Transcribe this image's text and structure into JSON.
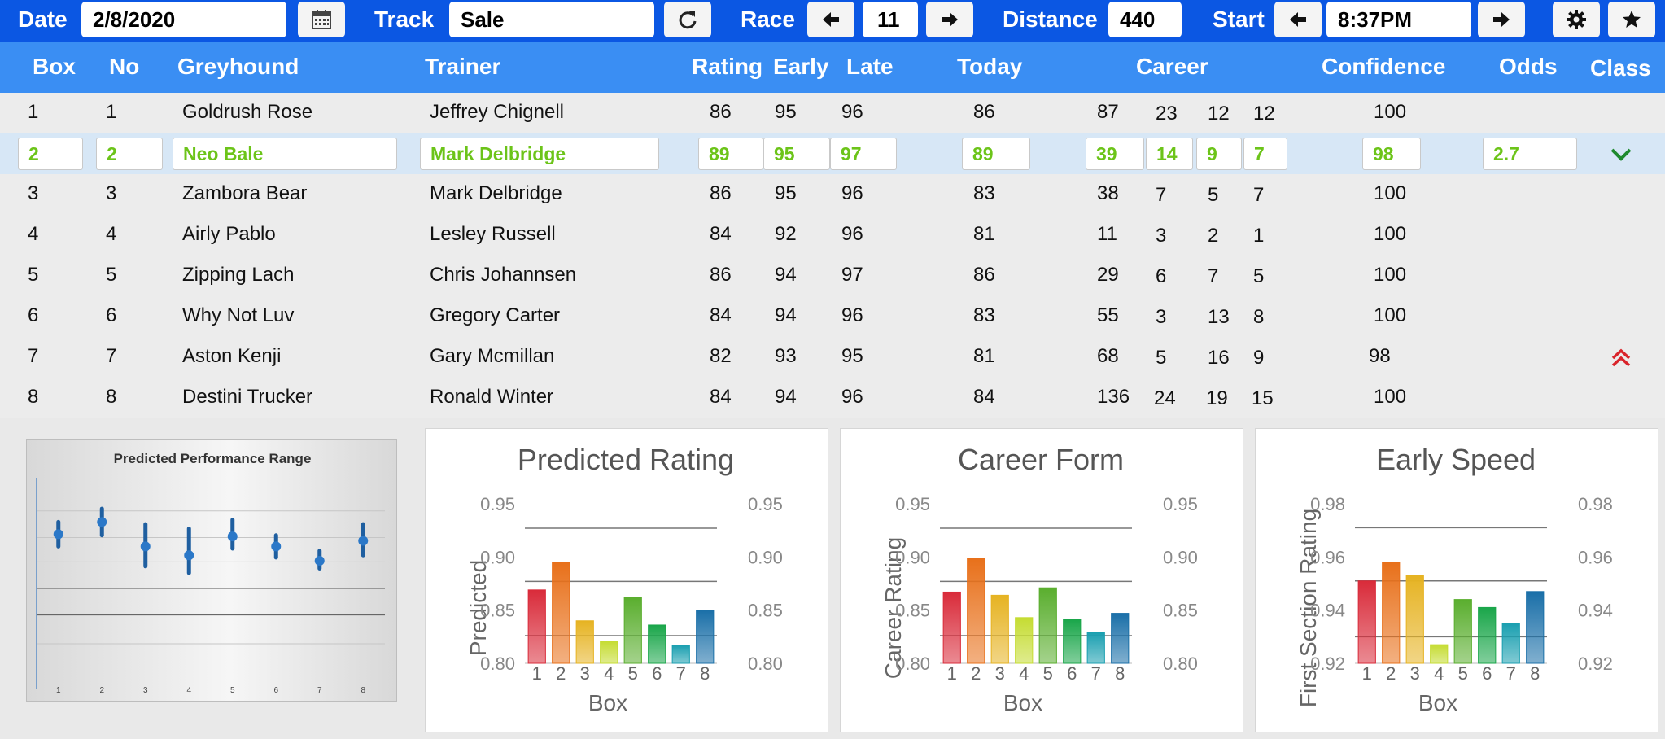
{
  "toolbar": {
    "date_label": "Date",
    "date_value": "2/8/2020",
    "track_label": "Track",
    "track_value": "Sale",
    "race_label": "Race",
    "race_value": "11",
    "distance_label": "Distance",
    "distance_value": "440",
    "start_label": "Start",
    "start_value": "8:37PM",
    "icons": [
      "calendar-icon",
      "refresh-icon",
      "arrow-left-icon",
      "arrow-right-icon",
      "gear-icon",
      "star-icon"
    ]
  },
  "table": {
    "headers": [
      "Box",
      "No",
      "Greyhound",
      "Trainer",
      "Rating",
      "Early",
      "Late",
      "Today",
      "Career",
      "Confidence",
      "Odds",
      "Class"
    ],
    "rows": [
      {
        "box": "1",
        "no": "1",
        "greyhound": "Goldrush Rose",
        "trainer": "Jeffrey Chignell",
        "rating": "86",
        "early": "95",
        "late": "96",
        "today": "86",
        "c1": "87",
        "c2": "23",
        "c3": "12",
        "c4": "12",
        "confidence": "100",
        "odds": "",
        "cls": ""
      },
      {
        "box": "2",
        "no": "2",
        "greyhound": "Neo Bale",
        "trainer": "Mark Delbridge",
        "rating": "89",
        "early": "95",
        "late": "97",
        "today": "89",
        "c1": "39",
        "c2": "14",
        "c3": "9",
        "c4": "7",
        "confidence": "98",
        "odds": "2.7",
        "cls": "chevron-down"
      },
      {
        "box": "3",
        "no": "3",
        "greyhound": "Zambora Bear",
        "trainer": "Mark Delbridge",
        "rating": "86",
        "early": "95",
        "late": "96",
        "today": "83",
        "c1": "38",
        "c2": "7",
        "c3": "5",
        "c4": "7",
        "confidence": "100",
        "odds": "",
        "cls": ""
      },
      {
        "box": "4",
        "no": "4",
        "greyhound": "Airly Pablo",
        "trainer": "Lesley Russell",
        "rating": "84",
        "early": "92",
        "late": "96",
        "today": "81",
        "c1": "11",
        "c2": "3",
        "c3": "2",
        "c4": "1",
        "confidence": "100",
        "odds": "",
        "cls": ""
      },
      {
        "box": "5",
        "no": "5",
        "greyhound": "Zipping Lach",
        "trainer": "Chris Johannsen",
        "rating": "86",
        "early": "94",
        "late": "97",
        "today": "86",
        "c1": "29",
        "c2": "6",
        "c3": "7",
        "c4": "5",
        "confidence": "100",
        "odds": "",
        "cls": ""
      },
      {
        "box": "6",
        "no": "6",
        "greyhound": "Why Not Luv",
        "trainer": "Gregory Carter",
        "rating": "84",
        "early": "94",
        "late": "96",
        "today": "83",
        "c1": "55",
        "c2": "3",
        "c3": "13",
        "c4": "8",
        "confidence": "100",
        "odds": "",
        "cls": ""
      },
      {
        "box": "7",
        "no": "7",
        "greyhound": "Aston Kenji",
        "trainer": "Gary Mcmillan",
        "rating": "82",
        "early": "93",
        "late": "95",
        "today": "81",
        "c1": "68",
        "c2": "5",
        "c3": "16",
        "c4": "9",
        "confidence": "98",
        "odds": "",
        "cls": "double-chevron-up"
      },
      {
        "box": "8",
        "no": "8",
        "greyhound": "Destini Trucker",
        "trainer": "Ronald Winter",
        "rating": "84",
        "early": "94",
        "late": "96",
        "today": "84",
        "c1": "136",
        "c2": "24",
        "c3": "19",
        "c4": "15",
        "confidence": "100",
        "odds": "",
        "cls": ""
      }
    ],
    "selected_row": 1
  },
  "colors": {
    "toolbar_bg": "#0b57e3",
    "header_bg": "#3a8ef3",
    "selected_row_bg": "#d7e7f6",
    "selected_text": "#6cc419",
    "down_chevron": "#1f8a2e",
    "up_chevron": "#d9242b",
    "bar_colors": [
      "#d92b3a",
      "#e8701a",
      "#e6b322",
      "#c5dc32",
      "#5aae2e",
      "#1aa64a",
      "#1a9fb0",
      "#1a6fa8"
    ]
  },
  "chart_data": [
    {
      "type": "scatter",
      "title": "Predicted Performance Range",
      "categories": [
        "1",
        "2",
        "3",
        "4",
        "5",
        "6",
        "7",
        "8"
      ],
      "values": [
        0.745,
        0.8,
        0.69,
        0.65,
        0.735,
        0.69,
        0.625,
        0.715
      ],
      "low": [
        0.69,
        0.74,
        0.6,
        0.57,
        0.68,
        0.64,
        0.59,
        0.65
      ],
      "high": [
        0.8,
        0.86,
        0.79,
        0.77,
        0.81,
        0.74,
        0.67,
        0.79
      ],
      "ylim": [
        0.0,
        1.0
      ],
      "grid": true
    },
    {
      "type": "bar",
      "title": "Predicted Rating",
      "categories": [
        "1",
        "2",
        "3",
        "4",
        "5",
        "6",
        "7",
        "8"
      ],
      "values": [
        0.869,
        0.895,
        0.84,
        0.821,
        0.862,
        0.836,
        0.817,
        0.85
      ],
      "xlabel": "Box",
      "ylabel": "Predicted",
      "ylim": [
        0.8,
        0.95
      ],
      "yticks": [
        "0.80",
        "0.85",
        "0.90",
        "0.95"
      ],
      "reference_lines": [
        0.927,
        0.877,
        0.826
      ]
    },
    {
      "type": "bar",
      "title": "Career Form",
      "categories": [
        "1",
        "2",
        "3",
        "4",
        "5",
        "6",
        "7",
        "8"
      ],
      "values": [
        0.867,
        0.899,
        0.864,
        0.843,
        0.871,
        0.841,
        0.829,
        0.847
      ],
      "xlabel": "Box",
      "ylabel": "Career Rating",
      "ylim": [
        0.8,
        0.95
      ],
      "yticks": [
        "0.80",
        "0.85",
        "0.90",
        "0.95"
      ],
      "reference_lines": [
        0.927,
        0.877,
        0.826
      ]
    },
    {
      "type": "bar",
      "title": "Early Speed",
      "categories": [
        "1",
        "2",
        "3",
        "4",
        "5",
        "6",
        "7",
        "8"
      ],
      "values": [
        0.951,
        0.958,
        0.953,
        0.927,
        0.944,
        0.941,
        0.935,
        0.947
      ],
      "xlabel": "Box",
      "ylabel": "First Section Rating",
      "ylim": [
        0.92,
        0.98
      ],
      "yticks": [
        "0.92",
        "0.94",
        "0.96",
        "0.98"
      ],
      "reference_lines": [
        0.971,
        0.951,
        0.93
      ]
    }
  ]
}
